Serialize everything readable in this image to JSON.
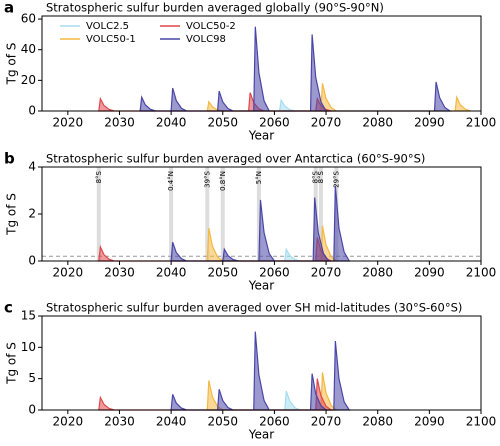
{
  "chart_data": [
    {
      "type": "area",
      "label": "a",
      "title": "Stratospheric sulfur burden averaged globally (90°S-90°N)",
      "xlabel": "Year",
      "ylabel": "Tg of S",
      "xlim": [
        2015,
        2100
      ],
      "ylim": [
        0,
        62
      ],
      "xticks": [
        2020,
        2030,
        2040,
        2050,
        2060,
        2070,
        2080,
        2090,
        2100
      ],
      "yticks": [
        0,
        20,
        40,
        60
      ],
      "legend": true,
      "legend_loc": "upper left",
      "series": [
        {
          "name": "VOLC2.5",
          "color": "#a6dcef",
          "x": [
            2061,
            2061.3,
            2062,
            2063,
            2064
          ],
          "values": [
            0,
            7,
            3.2,
            0.8,
            0
          ]
        },
        {
          "name": "VOLC50-1",
          "color": "#f5b841",
          "x": [
            2047,
            2047.3,
            2048,
            2049,
            2050,
            2069,
            2069.3,
            2070,
            2071,
            2072,
            2095,
            2095.3,
            2096,
            2097,
            2098
          ],
          "values": [
            0,
            6,
            2.7,
            0.7,
            0,
            0,
            18,
            8.1,
            2.2,
            0,
            0,
            9,
            4,
            1.1,
            0
          ]
        },
        {
          "name": "VOLC50-2",
          "color": "#e0474c",
          "x": [
            2026,
            2026.3,
            2027,
            2028,
            2029,
            2055,
            2055.3,
            2056,
            2057,
            2058,
            2068,
            2068.3,
            2069,
            2070,
            2071
          ],
          "values": [
            0,
            8,
            3.6,
            1,
            0,
            0,
            12,
            5.4,
            1.4,
            0,
            0,
            8,
            3.6,
            1,
            0
          ]
        },
        {
          "name": "VOLC98",
          "color": "#4a46a8",
          "x": [
            2034,
            2034.3,
            2035,
            2036,
            2037,
            2040,
            2040.3,
            2041,
            2042,
            2043,
            2049,
            2049.3,
            2050,
            2051,
            2052,
            2056,
            2056.3,
            2057,
            2058,
            2059,
            2067,
            2067.3,
            2068,
            2069,
            2070,
            2091,
            2091.3,
            2092,
            2093,
            2094
          ],
          "values": [
            0,
            9,
            4,
            1.1,
            0,
            0,
            15,
            6.8,
            1.8,
            0,
            0,
            13,
            5.9,
            1.6,
            0,
            0,
            55,
            25,
            6.6,
            0,
            0,
            50,
            22,
            6,
            0,
            0,
            19,
            8.6,
            2.3,
            0
          ]
        }
      ]
    },
    {
      "type": "area",
      "label": "b",
      "title": "Stratospheric sulfur burden averaged over Antarctica (60°S-90°S)",
      "xlabel": "Year",
      "ylabel": "Tg of S",
      "xlim": [
        2015,
        2100
      ],
      "ylim": [
        0,
        4
      ],
      "xticks": [
        2020,
        2030,
        2040,
        2050,
        2060,
        2070,
        2080,
        2090,
        2100
      ],
      "yticks": [
        0,
        2,
        4
      ],
      "threshold": 0.2,
      "annotations": [
        {
          "x": 2026,
          "label": "8°S"
        },
        {
          "x": 2040,
          "label": "0.4°N"
        },
        {
          "x": 2047,
          "label": "39°S"
        },
        {
          "x": 2050,
          "label": "0.8°N"
        },
        {
          "x": 2057,
          "label": "5°N"
        },
        {
          "x": 2068,
          "label": "8°S"
        },
        {
          "x": 2069,
          "label": "8°S"
        },
        {
          "x": 2072,
          "label": "29°S"
        }
      ],
      "series": [
        {
          "name": "VOLC2.5",
          "color": "#a6dcef",
          "x": [
            2062,
            2062.3,
            2063,
            2064,
            2065
          ],
          "values": [
            0,
            0.5,
            0.23,
            0.06,
            0
          ]
        },
        {
          "name": "VOLC50-1",
          "color": "#f5b841",
          "x": [
            2047,
            2047.3,
            2048,
            2049,
            2050,
            2069,
            2069.3,
            2070,
            2071,
            2072
          ],
          "values": [
            0,
            1.4,
            0.63,
            0.17,
            0,
            0,
            1.5,
            0.68,
            0.18,
            0
          ]
        },
        {
          "name": "VOLC50-2",
          "color": "#e0474c",
          "x": [
            2026,
            2026.3,
            2027,
            2028,
            2029,
            2068,
            2068.3,
            2069,
            2070,
            2071
          ],
          "values": [
            0,
            0.6,
            0.27,
            0.07,
            0,
            0,
            1,
            0.45,
            0.12,
            0
          ]
        },
        {
          "name": "VOLC98",
          "color": "#4a46a8",
          "x": [
            2040,
            2040.3,
            2041,
            2042,
            2043,
            2050,
            2050.3,
            2051,
            2052,
            2053,
            2057,
            2057.3,
            2058,
            2059,
            2060,
            2067.5,
            2067.8,
            2068.5,
            2069.5,
            2070.5,
            2071.5,
            2071.8,
            2072.5,
            2073.5,
            2074.5
          ],
          "values": [
            0,
            0.8,
            0.36,
            0.1,
            0,
            0,
            0.5,
            0.23,
            0.06,
            0,
            0,
            2.6,
            1.2,
            0.31,
            0,
            0,
            2.7,
            1.2,
            0.32,
            0,
            0,
            3.2,
            1.4,
            0.38,
            0
          ]
        }
      ]
    },
    {
      "type": "area",
      "label": "c",
      "title": "Stratospheric sulfur burden averaged over SH mid-latitudes (30°S-60°S)",
      "xlabel": "Year",
      "ylabel": "Tg of S",
      "xlim": [
        2015,
        2100
      ],
      "ylim": [
        0,
        15
      ],
      "xticks": [
        2020,
        2030,
        2040,
        2050,
        2060,
        2070,
        2080,
        2090,
        2100
      ],
      "yticks": [
        0,
        5,
        10,
        15
      ],
      "series": [
        {
          "name": "VOLC2.5",
          "color": "#a6dcef",
          "x": [
            2062,
            2062.3,
            2063,
            2064,
            2065
          ],
          "values": [
            0,
            3,
            1.4,
            0.36,
            0
          ]
        },
        {
          "name": "VOLC50-1",
          "color": "#f5b841",
          "x": [
            2047,
            2047.3,
            2048,
            2049,
            2050,
            2069,
            2069.3,
            2070,
            2071,
            2072
          ],
          "values": [
            0,
            4.7,
            2.1,
            0.56,
            0,
            0,
            6,
            2.7,
            0.72,
            0
          ]
        },
        {
          "name": "VOLC50-2",
          "color": "#e0474c",
          "x": [
            2026,
            2026.3,
            2027,
            2028,
            2029,
            2068,
            2068.3,
            2069,
            2070,
            2071
          ],
          "values": [
            0,
            2,
            0.9,
            0.24,
            0,
            0,
            5,
            2.3,
            0.6,
            0
          ]
        },
        {
          "name": "VOLC98",
          "color": "#4a46a8",
          "x": [
            2040,
            2040.3,
            2041,
            2042,
            2043,
            2049,
            2049.3,
            2050,
            2051,
            2052,
            2056,
            2056.3,
            2057,
            2058,
            2059,
            2067,
            2067.3,
            2068,
            2069,
            2070,
            2071.5,
            2071.8,
            2072.5,
            2073.5,
            2074.5
          ],
          "values": [
            0,
            2.5,
            1.1,
            0.3,
            0,
            0,
            3.3,
            1.5,
            0.4,
            0,
            0,
            12.5,
            5.6,
            1.5,
            0,
            0,
            5.8,
            2.6,
            0.7,
            0,
            0,
            11,
            5,
            1.3,
            0
          ]
        }
      ]
    }
  ]
}
